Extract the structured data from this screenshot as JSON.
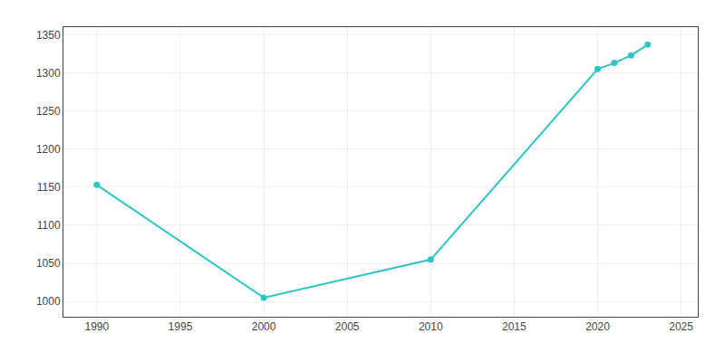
{
  "chart_data": {
    "type": "line",
    "x": [
      1990,
      2000,
      2010,
      2020,
      2021,
      2022,
      2023
    ],
    "values": [
      1153,
      1005,
      1055,
      1305,
      1313,
      1323,
      1337
    ],
    "color": "#2EC4C4",
    "marker": "circle",
    "xlim": [
      1988,
      2026
    ],
    "ylim": [
      980,
      1360
    ],
    "xticks": [
      1990,
      1995,
      2000,
      2005,
      2010,
      2015,
      2020,
      2025
    ],
    "yticks": [
      1000,
      1050,
      1100,
      1150,
      1200,
      1250,
      1300,
      1350
    ],
    "grid": true
  }
}
